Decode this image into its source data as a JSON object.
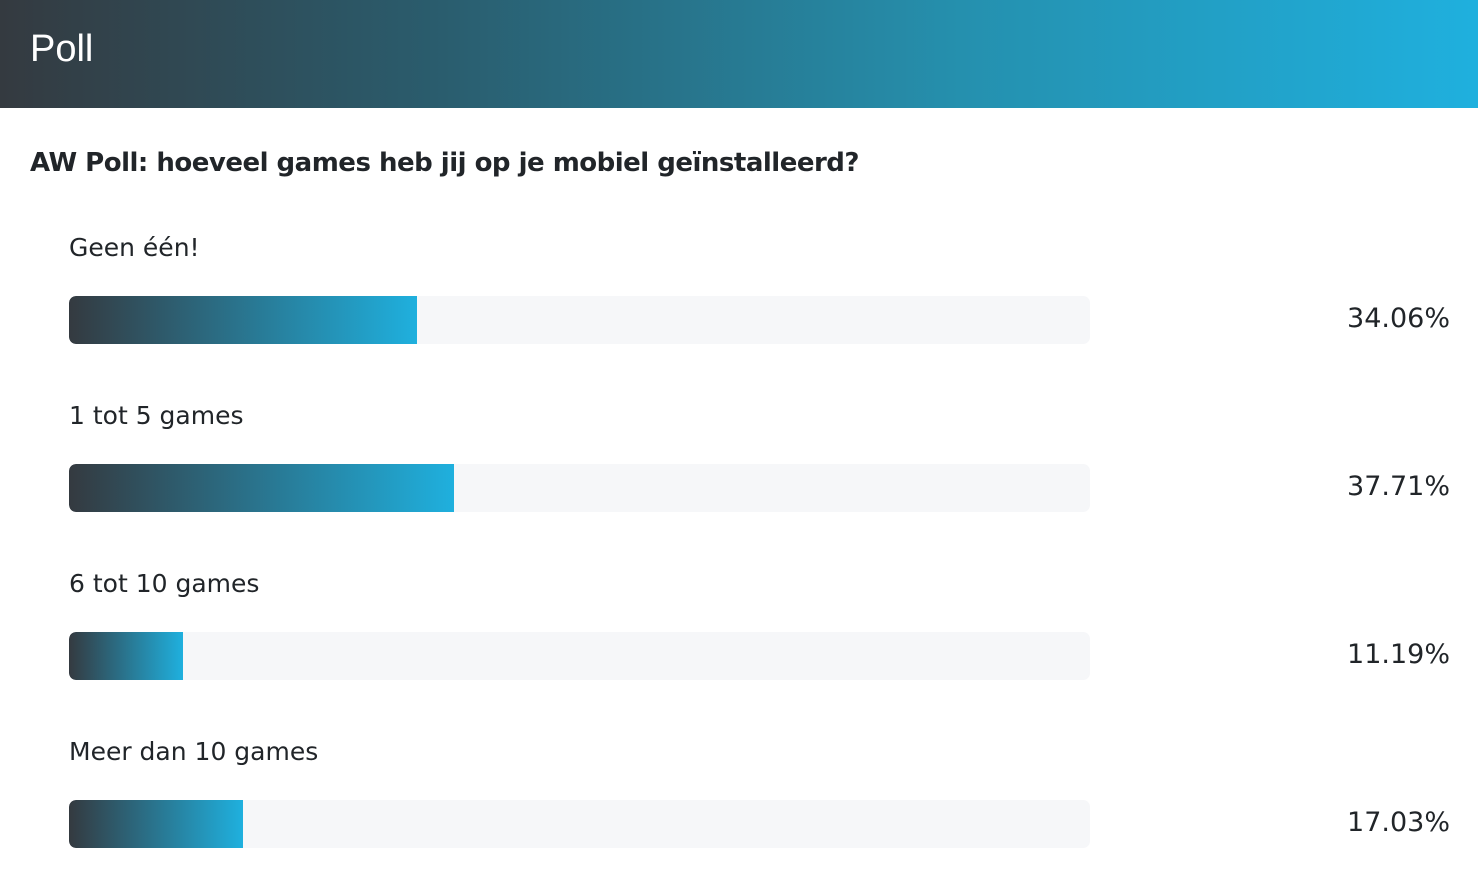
{
  "header": {
    "title": "Poll"
  },
  "poll": {
    "question": "AW Poll: hoeveel games heb jij op je mobiel geïnstalleerd?",
    "options": [
      {
        "label": "Geen één!",
        "percent_text": "34.06%",
        "value": 34.06
      },
      {
        "label": "1 tot 5 games",
        "percent_text": "37.71%",
        "value": 37.71
      },
      {
        "label": "6 tot 10 games",
        "percent_text": "11.19%",
        "value": 11.19
      },
      {
        "label": "Meer dan 10 games",
        "percent_text": "17.03%",
        "value": 17.03
      }
    ]
  },
  "colors": {
    "bar_start": "#343a40",
    "bar_end": "#1fb0de",
    "track": "#f6f7f9"
  }
}
